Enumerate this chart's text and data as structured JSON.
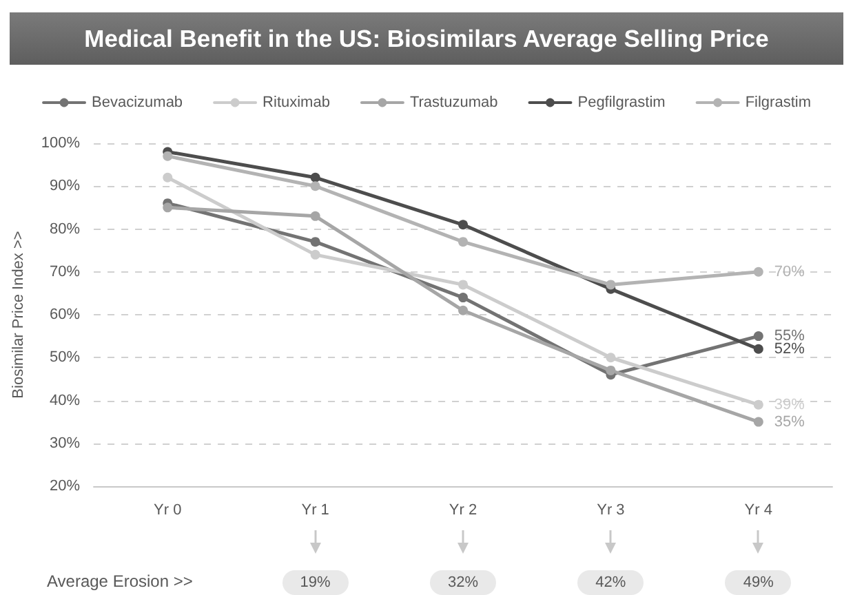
{
  "chart_data": {
    "type": "line",
    "title": "Medical Benefit in the US: Biosimilars Average Selling Price",
    "ylabel": "Biosimilar Price Index >>",
    "categories": [
      "Yr 0",
      "Yr 1",
      "Yr 2",
      "Yr 3",
      "Yr 4"
    ],
    "series": [
      {
        "name": "Bevacizumab",
        "color": "#737373",
        "values": [
          86,
          77,
          64,
          46,
          55
        ],
        "value_labels": [
          null,
          null,
          null,
          null,
          "55%"
        ]
      },
      {
        "name": "Rituximab",
        "color": "#cccccc",
        "values": [
          92,
          74,
          67,
          50,
          39
        ],
        "value_labels": [
          null,
          null,
          null,
          null,
          "39%"
        ]
      },
      {
        "name": "Trastuzumab",
        "color": "#a6a6a6",
        "values": [
          85,
          83,
          61,
          47,
          35
        ],
        "value_labels": [
          null,
          null,
          null,
          null,
          "35%"
        ]
      },
      {
        "name": "Pegfilgrastim",
        "color": "#4d4d4d",
        "values": [
          98,
          92,
          81,
          66,
          52
        ],
        "value_labels": [
          null,
          null,
          null,
          null,
          "52%"
        ]
      },
      {
        "name": "Filgrastim",
        "color": "#b3b3b3",
        "values": [
          97,
          90,
          77,
          67,
          70
        ],
        "value_labels": [
          null,
          null,
          null,
          null,
          "70%"
        ]
      }
    ],
    "ylim": [
      20,
      100
    ],
    "yticks": [
      {
        "value": 20,
        "label": "20%"
      },
      {
        "value": 30,
        "label": "30%"
      },
      {
        "value": 40,
        "label": "40%"
      },
      {
        "value": 50,
        "label": "50%"
      },
      {
        "value": 60,
        "label": "60%"
      },
      {
        "value": 70,
        "label": "70%"
      },
      {
        "value": 80,
        "label": "80%"
      },
      {
        "value": 90,
        "label": "90%"
      },
      {
        "value": 100,
        "label": "100%"
      }
    ],
    "grid": "y",
    "legend": "top",
    "marker": "circle",
    "line_style": "solid",
    "annotations": [
      "Average Erosion >>",
      "19%",
      "32%",
      "42%",
      "49%"
    ]
  }
}
